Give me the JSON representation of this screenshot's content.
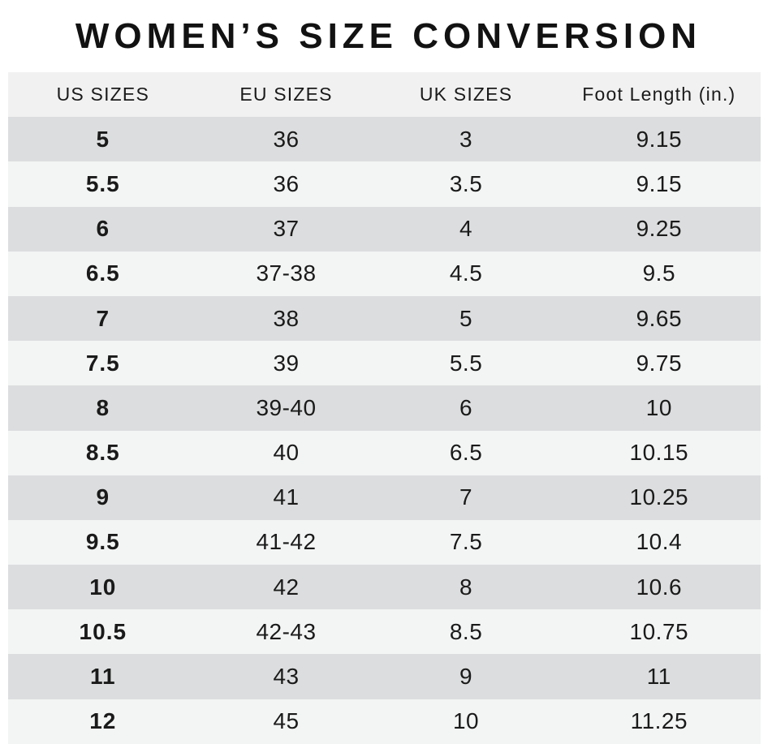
{
  "title": "WOMEN’S SIZE CONVERSION",
  "chart_data": {
    "type": "table",
    "title": "WOMEN’S SIZE CONVERSION",
    "columns": [
      "US SIZES",
      "EU SIZES",
      "UK SIZES",
      "Foot Length (in.)"
    ],
    "rows": [
      [
        "5",
        "36",
        "3",
        "9.15"
      ],
      [
        "5.5",
        "36",
        "3.5",
        "9.15"
      ],
      [
        "6",
        "37",
        "4",
        "9.25"
      ],
      [
        "6.5",
        "37-38",
        "4.5",
        "9.5"
      ],
      [
        "7",
        "38",
        "5",
        "9.65"
      ],
      [
        "7.5",
        "39",
        "5.5",
        "9.75"
      ],
      [
        "8",
        "39-40",
        "6",
        "10"
      ],
      [
        "8.5",
        "40",
        "6.5",
        "10.15"
      ],
      [
        "9",
        "41",
        "7",
        "10.25"
      ],
      [
        "9.5",
        "41-42",
        "7.5",
        "10.4"
      ],
      [
        "10",
        "42",
        "8",
        "10.6"
      ],
      [
        "10.5",
        "42-43",
        "8.5",
        "10.75"
      ],
      [
        "11",
        "43",
        "9",
        "11"
      ],
      [
        "12",
        "45",
        "10",
        "11.25"
      ]
    ],
    "layout": {
      "striped": true,
      "first_data_row_shade": "dark",
      "column_alignment": "center",
      "grid_lines": false,
      "legend": false
    }
  },
  "colors": {
    "row_dark": "#dcddde",
    "row_light": "#f3f4f4",
    "header_bg": "#f1f1f1",
    "text": "#1a1a1a",
    "title": "#121212",
    "background": "#ffffff"
  }
}
